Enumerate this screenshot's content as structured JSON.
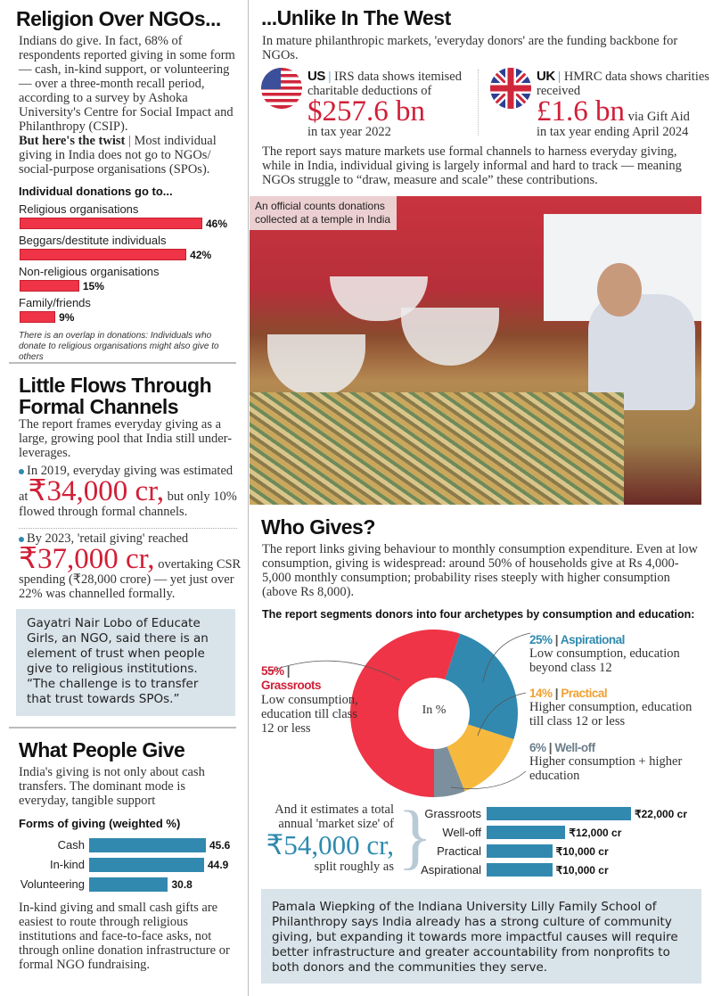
{
  "religion": {
    "title": "Religion Over NGOs...",
    "body": "Indians do give. In fact, 68% of respondents reported giving in some form — cash, in-kind support, or volunteering — over a three-month recall period, according to a survey by Ashoka University's Centre for Social Impact and Philanthropy (CSIP).",
    "twist_label": "But here's the twist",
    "twist_text": "Most individual giving in India does not go to NGOs/ social-purpose organisations (SPOs).",
    "note": "There is an overlap in donations: Individuals who donate to religious organisations might also give to others"
  },
  "formal": {
    "title": "Little Flows Through Formal Channels",
    "body": "The report frames everyday giving as a large, growing pool that India still under-leverages.",
    "b1_lead": "In 2019, everyday giving was estimated",
    "b1_at": "at",
    "b1_big": "₹34,000 cr,",
    "b1_tail": "but only 10% flowed through formal channels.",
    "b2_lead": "By 2023, 'retail giving' reached",
    "b2_big": "₹37,000 cr,",
    "b2_tail": "overtaking CSR spending (₹28,000 crore) — yet just over 22% was channelled formally.",
    "quote": "Gayatri Nair Lobo of Educate Girls, an NGO, said there is an element of trust when people give to religious institutions. “The challenge is to transfer that trust towards SPOs.”"
  },
  "what": {
    "title": "What People Give",
    "body": "India's giving is not only about cash transfers. The dominant mode is everyday, tangible support",
    "after": "In-kind giving and small cash gifts are easiest to route through religious institutions and face-to-face asks, not through online donation infrastructure or formal NGO fundraising."
  },
  "west": {
    "title": "...Unlike In The West",
    "body": "In mature philanthropic markets, 'everyday donors' are the funding backbone for NGOs.",
    "us_label": "US",
    "us_text": "IRS data shows itemised charitable deductions of",
    "us_big": "$257.6 bn",
    "us_tail": "in tax year 2022",
    "uk_label": "UK",
    "uk_text": "HMRC data shows charities received",
    "uk_big": "£1.6 bn",
    "uk_via": "via Gift Aid",
    "uk_tail": "in tax year ending April 2024",
    "body2": "The report says mature markets use formal channels to harness everyday giving, while in India, individual giving is largely informal and hard to track — meaning NGOs struggle to “draw, measure and scale” these contributions.",
    "photo_caption": "An official counts donations collected at a temple in India"
  },
  "who": {
    "title": "Who Gives?",
    "body": "The report links giving behaviour to monthly consumption expenditure. Even at low consumption, giving is widespread: around 50% of households give at Rs 4,000-5,000 monthly consumption; probability rises steeply with higher consumption (above Rs 8,000).",
    "legend": [
      {
        "pct": "55%",
        "name": "Grassroots",
        "desc": "Low consumption, education till class 12 or less"
      },
      {
        "pct": "25%",
        "name": "Aspirational",
        "desc": "Low consumption, education beyond class 12"
      },
      {
        "pct": "14%",
        "name": "Practical",
        "desc": "Higher consumption, education till class 12 or less"
      },
      {
        "pct": "6%",
        "name": "Well-off",
        "desc": "Higher consumption + higher education"
      }
    ],
    "market_lead": "And it estimates a total annual 'market size' of",
    "market_big": "₹54,000 cr,",
    "market_tail": "split roughly as",
    "quote": "Pamala Wiepking of the Indiana University Lilly Family School of Philanthropy says India already has a strong culture of community giving, but expanding it towards more impactful causes will require better infrastructure and greater accountability from nonprofits to both donors and the communities they serve."
  },
  "chart_data": [
    {
      "type": "bar",
      "title": "Individual donations go to...",
      "categories": [
        "Religious organisations",
        "Beggars/destitute individuals",
        "Non-religious organisations",
        "Family/friends"
      ],
      "values": [
        46,
        42,
        15,
        9
      ],
      "labels": [
        "46%",
        "42%",
        "15%",
        "9%"
      ],
      "color": "#ee3446"
    },
    {
      "type": "bar",
      "title": "Forms of giving (weighted %)",
      "categories": [
        "Cash",
        "In-kind",
        "Volunteering"
      ],
      "values": [
        45.6,
        44.9,
        30.8
      ],
      "labels": [
        "45.6",
        "44.9",
        "30.8"
      ],
      "color": "#3189af"
    },
    {
      "type": "pie",
      "title": "The report segments donors into four archetypes by consumption and education:",
      "center_label": "In %",
      "categories": [
        "Grassroots",
        "Aspirational",
        "Practical",
        "Well-off"
      ],
      "values": [
        55,
        25,
        14,
        6
      ],
      "colors": [
        "#ee3446",
        "#3189af",
        "#f6b93e",
        "#7c8f9c"
      ]
    },
    {
      "type": "bar",
      "categories": [
        "Grassroots",
        "Well-off",
        "Practical",
        "Aspirational"
      ],
      "values": [
        22000,
        12000,
        10000,
        10000
      ],
      "labels": [
        "₹22,000 cr",
        "₹12,000 cr",
        "₹10,000 cr",
        "₹10,000 cr"
      ],
      "color": "#3189af"
    }
  ]
}
